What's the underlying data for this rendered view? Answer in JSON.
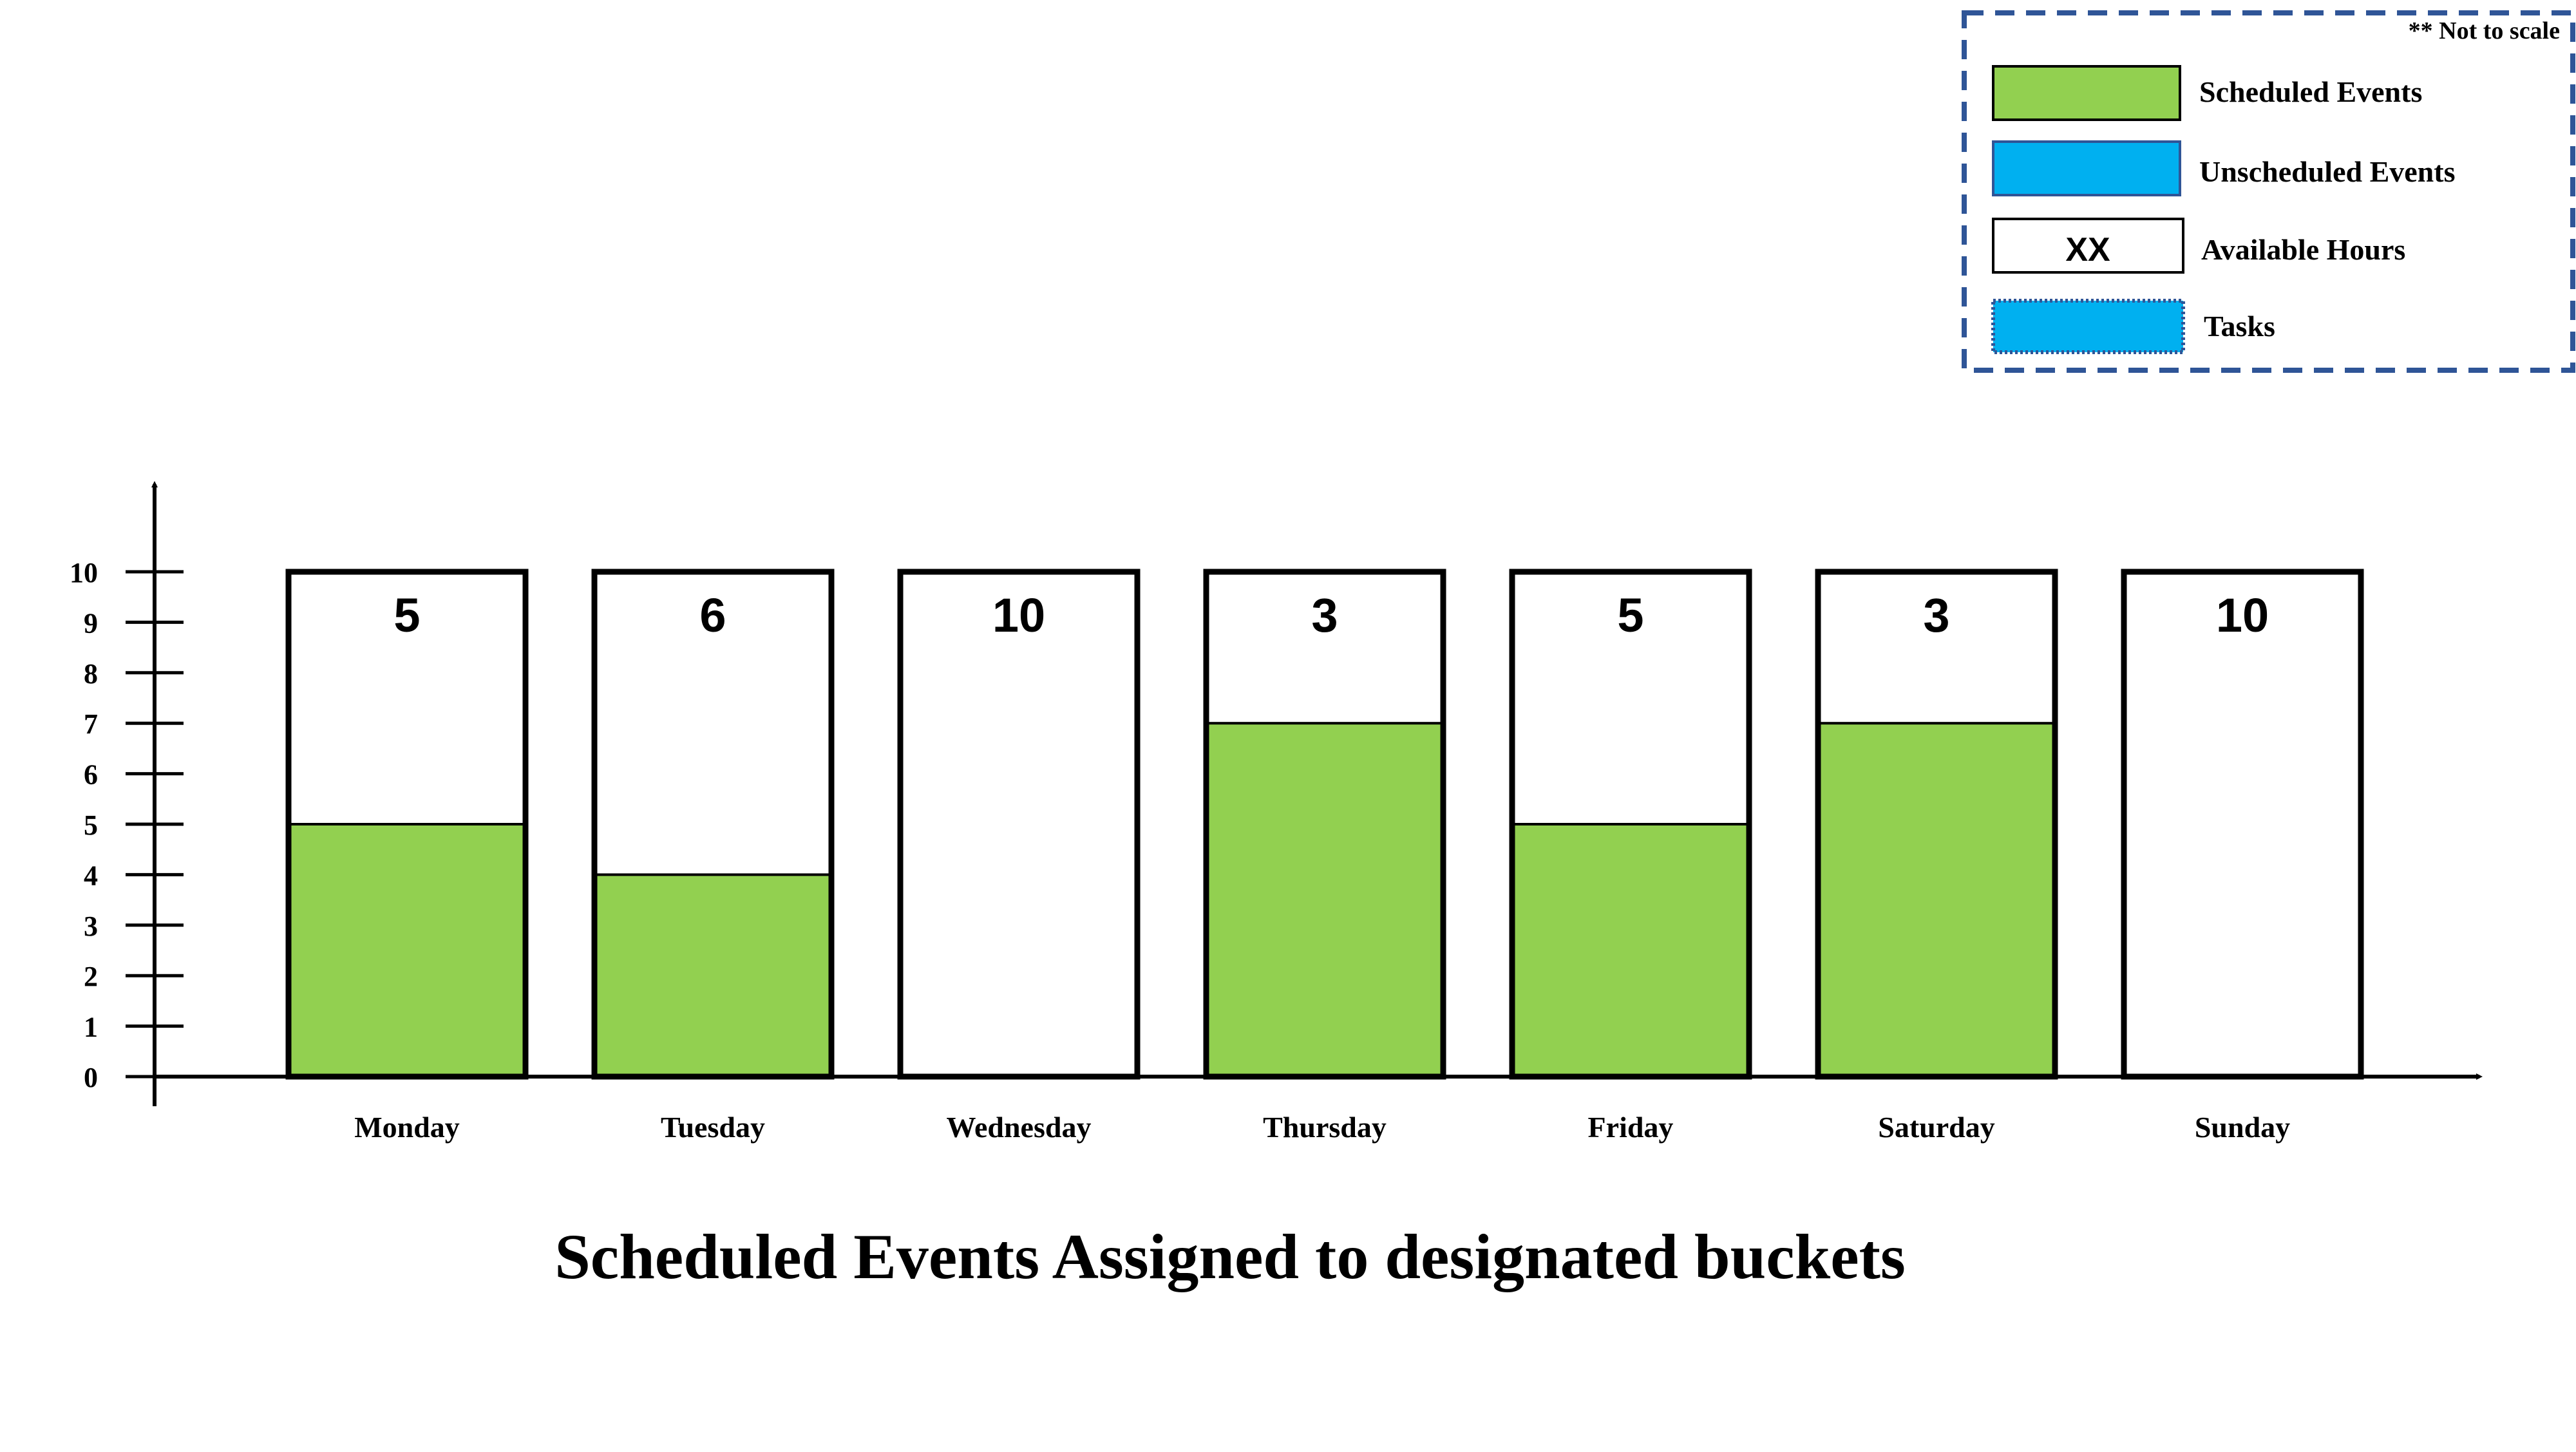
{
  "chart_data": {
    "type": "bar",
    "title": "Scheduled Events Assigned to designated buckets",
    "note": "** Not to scale",
    "xlabel": "",
    "ylabel": "",
    "ylim": [
      0,
      10
    ],
    "yticks": [
      "0",
      "1",
      "2",
      "3",
      "4",
      "5",
      "6",
      "7",
      "8",
      "9",
      "10"
    ],
    "categories": [
      "Monday",
      "Tuesday",
      "Wednesday",
      "Thursday",
      "Friday",
      "Saturday",
      "Sunday"
    ],
    "series": [
      {
        "name": "Scheduled Events",
        "color": "#92D050",
        "values": [
          5,
          4,
          0,
          7,
          5,
          7,
          0
        ]
      },
      {
        "name": "Available Hours",
        "color": "#FFFFFF",
        "values": [
          5,
          6,
          10,
          3,
          5,
          3,
          10
        ]
      }
    ],
    "available_labels": [
      "5",
      "6",
      "10",
      "3",
      "5",
      "3",
      "10"
    ],
    "legend": {
      "placement": "top-right",
      "border_color": "#2F5597",
      "items": [
        {
          "label": "Scheduled Events",
          "color": "#92D050",
          "marker": ""
        },
        {
          "label": "Unscheduled Events",
          "color": "#00B0F0",
          "marker": ""
        },
        {
          "label": "Available Hours",
          "color": "#FFFFFF",
          "marker": "XX"
        },
        {
          "label": "Tasks",
          "color": "#00B0F0",
          "marker": ""
        }
      ]
    }
  }
}
